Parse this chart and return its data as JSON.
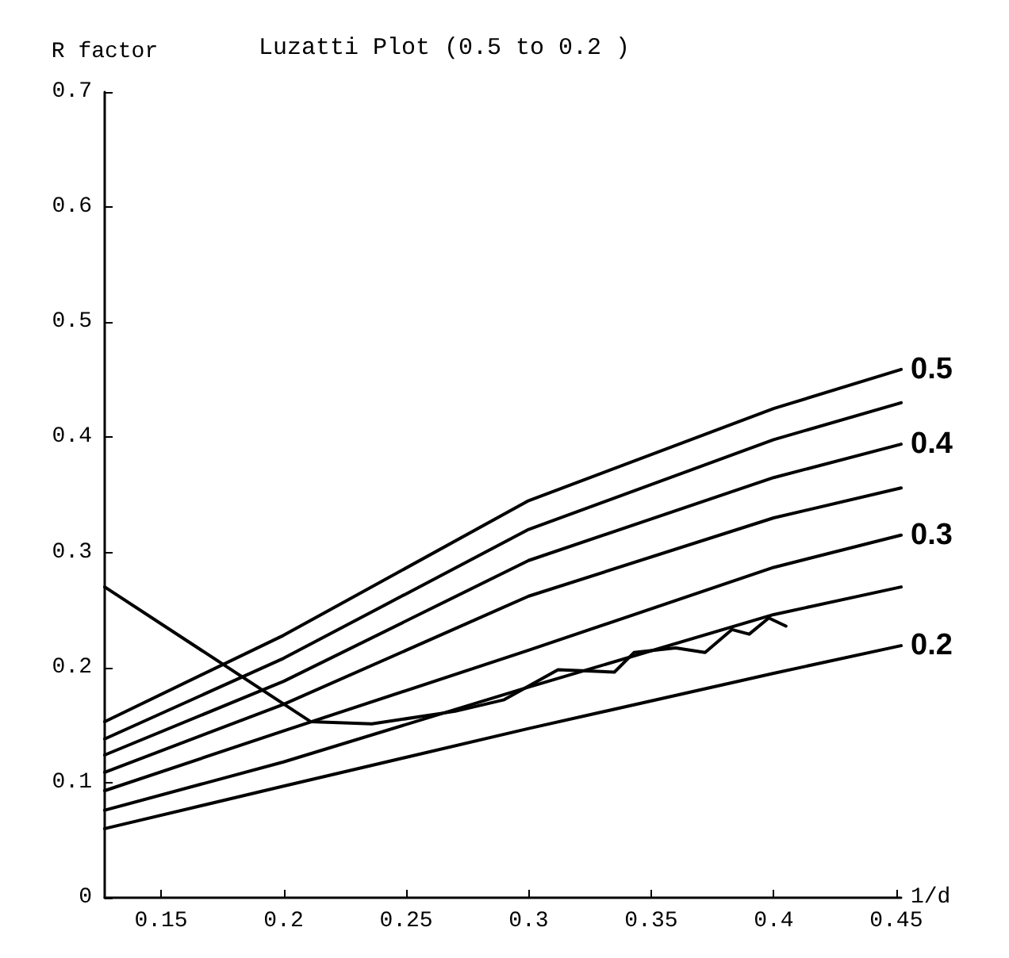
{
  "chart_data": {
    "type": "line",
    "title": "Luzatti Plot (0.5 to 0.2 )",
    "xlabel": "1/d",
    "ylabel": "R factor",
    "xlim": [
      0.127,
      0.452
    ],
    "xticks": [
      0.15,
      0.2,
      0.25,
      0.3,
      0.35,
      0.4,
      0.45
    ],
    "ylim": [
      0,
      0.7
    ],
    "yticks": [
      0,
      0.1,
      0.2,
      0.3,
      0.4,
      0.5,
      0.6,
      0.7
    ],
    "grid": false,
    "legend": false,
    "marker": "none",
    "line_style": "solid",
    "series": [
      {
        "name": "0.5",
        "color": "#000000",
        "x": [
          0.127,
          0.2,
          0.3,
          0.4,
          0.452
        ],
        "values": [
          0.153,
          0.228,
          0.345,
          0.425,
          0.459
        ]
      },
      {
        "color": "#000000",
        "x": [
          0.127,
          0.2,
          0.3,
          0.4,
          0.452
        ],
        "values": [
          0.138,
          0.208,
          0.32,
          0.398,
          0.43
        ]
      },
      {
        "name": "0.4",
        "color": "#000000",
        "x": [
          0.127,
          0.2,
          0.3,
          0.4,
          0.452
        ],
        "values": [
          0.124,
          0.188,
          0.293,
          0.365,
          0.394
        ]
      },
      {
        "color": "#000000",
        "x": [
          0.127,
          0.2,
          0.3,
          0.4,
          0.452
        ],
        "values": [
          0.109,
          0.168,
          0.262,
          0.33,
          0.356
        ]
      },
      {
        "name": "0.3",
        "color": "#000000",
        "x": [
          0.127,
          0.2,
          0.3,
          0.4,
          0.452
        ],
        "values": [
          0.093,
          0.145,
          0.215,
          0.287,
          0.315
        ]
      },
      {
        "color": "#000000",
        "x": [
          0.127,
          0.2,
          0.3,
          0.4,
          0.452
        ],
        "values": [
          0.076,
          0.118,
          0.183,
          0.246,
          0.27
        ]
      },
      {
        "name": "0.2",
        "color": "#000000",
        "x": [
          0.127,
          0.2,
          0.3,
          0.4,
          0.452
        ],
        "values": [
          0.06,
          0.097,
          0.147,
          0.195,
          0.219
        ]
      },
      {
        "color": "#000000",
        "x": [
          0.127,
          0.211,
          0.236,
          0.27,
          0.29,
          0.312,
          0.335,
          0.343,
          0.36,
          0.372,
          0.383,
          0.39,
          0.398,
          0.405
        ],
        "values": [
          0.27,
          0.153,
          0.151,
          0.162,
          0.172,
          0.198,
          0.196,
          0.213,
          0.217,
          0.213,
          0.233,
          0.229,
          0.243,
          0.236
        ]
      }
    ]
  }
}
